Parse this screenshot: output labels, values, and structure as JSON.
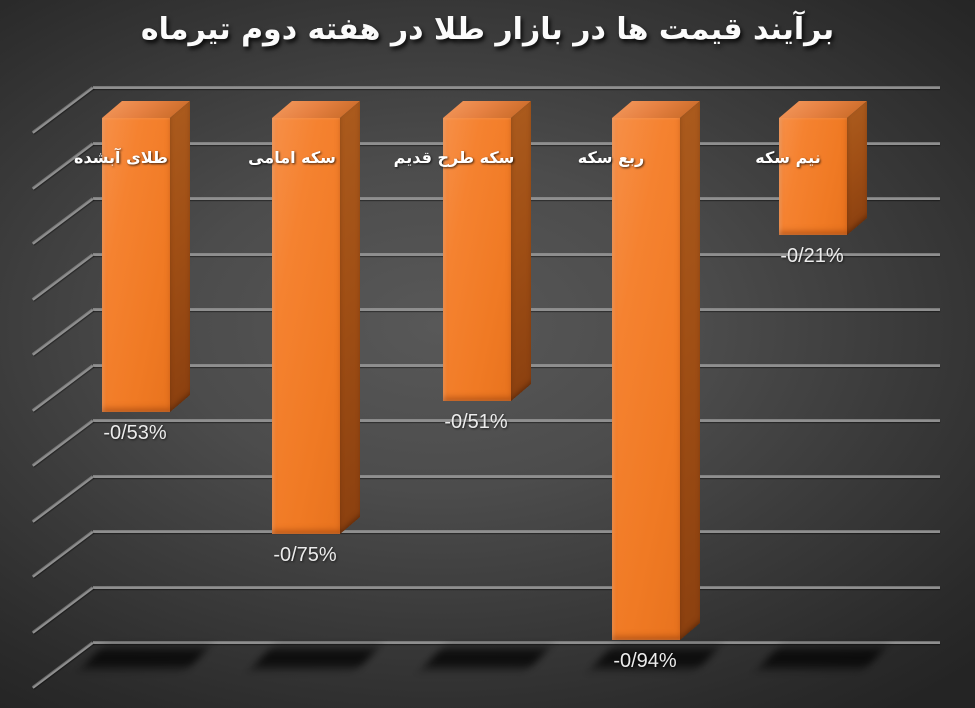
{
  "title": "برآیند قیمت ها در بازار طلا در هفته دوم تیرماه",
  "chart_data": {
    "type": "bar",
    "style": "3d-column",
    "title": "برآیند قیمت ها در بازار طلا در هفته دوم تیرماه",
    "categories": [
      "طلای آبشده",
      "سکه امامی",
      "سکه طرح قدیم",
      "ربع سکه",
      "نیم سکه"
    ],
    "values": [
      -0.53,
      -0.75,
      -0.51,
      -0.94,
      -0.21
    ],
    "value_labels": [
      "-0/53%",
      "-0/75%",
      "-0/51%",
      "-0/94%",
      "-0/21%"
    ],
    "unit": "%",
    "decimal_separator": "/",
    "ylim": [
      -1.0,
      0.0
    ],
    "gridline_step": 0.1,
    "grid": true,
    "legend": false,
    "text_direction": "rtl",
    "colors": {
      "bar_front": "#f07a24",
      "bar_side": "#9d4e15",
      "bar_top": "#e68142",
      "gridline": "#8f8f8f",
      "category_text": "#ffffff",
      "value_text": "#ececec",
      "title_text": "#fbfbfb",
      "background_center": "#565656",
      "background_edge": "#262626"
    }
  }
}
